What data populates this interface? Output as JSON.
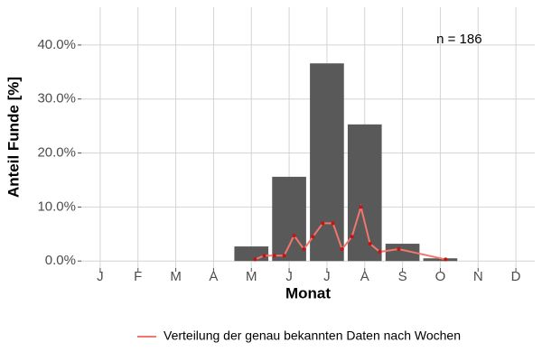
{
  "chart_data": {
    "type": "bar",
    "x_label": "Monat",
    "y_label": "Anteil Funde [%]",
    "categories": [
      "J",
      "F",
      "M",
      "A",
      "M",
      "J",
      "J",
      "A",
      "S",
      "O",
      "N",
      "D"
    ],
    "values": [
      0,
      0,
      0,
      0,
      2.7,
      15.6,
      36.6,
      25.3,
      3.2,
      0.5,
      0,
      0
    ],
    "color": "#595959",
    "xlim": [
      0.5,
      12.5
    ],
    "ylim": [
      -1.3,
      47
    ],
    "yticks": [
      {
        "value": 0,
        "label": "0.0%"
      },
      {
        "value": 10,
        "label": "10.0%"
      },
      {
        "value": 20,
        "label": "20.0%"
      },
      {
        "value": 30,
        "label": "30.0%"
      },
      {
        "value": 40,
        "label": "40.0%"
      }
    ],
    "grid": true,
    "annotation": {
      "text": "n = 186",
      "x": 10.5,
      "y": 41
    },
    "overlay": {
      "type": "line",
      "name": "Verteilung der genau bekannten Daten nach Wochen",
      "color": "#f0766e",
      "point_color": "#cc1111",
      "x": [
        5.1,
        5.34,
        5.61,
        5.87,
        6.13,
        6.39,
        6.63,
        6.89,
        7.16,
        7.4,
        7.66,
        7.9,
        8.14,
        8.4,
        8.9,
        10.14
      ],
      "values": [
        0.3,
        1.0,
        1.0,
        1.0,
        4.7,
        2.2,
        4.5,
        7.0,
        7.0,
        2.2,
        4.5,
        10.0,
        3.2,
        1.7,
        2.2,
        0.3
      ]
    },
    "legend_position": "bottom"
  }
}
